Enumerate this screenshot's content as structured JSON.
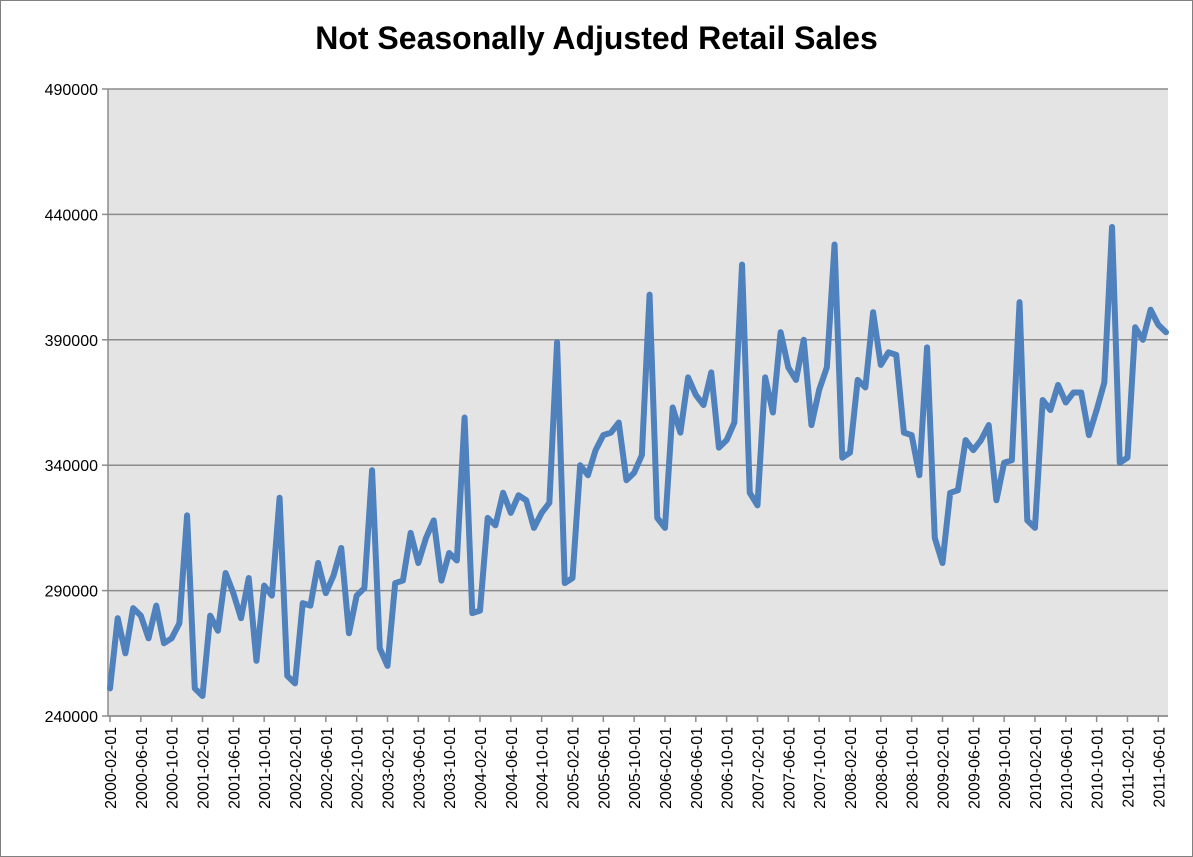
{
  "chart_data": {
    "type": "line",
    "title": "Not Seasonally Adjusted Retail Sales",
    "xlabel": "",
    "ylabel": "",
    "ylim": [
      240000,
      490000
    ],
    "yticks": [
      "240000",
      "290000",
      "340000",
      "390000",
      "440000",
      "490000"
    ],
    "grid": true,
    "legend": "none",
    "x_tick_labels": [
      "2000-02-01",
      "2000-06-01",
      "2000-10-01",
      "2001-02-01",
      "2001-06-01",
      "2001-10-01",
      "2002-02-01",
      "2002-06-01",
      "2002-10-01",
      "2003-02-01",
      "2003-06-01",
      "2003-10-01",
      "2004-02-01",
      "2004-06-01",
      "2004-10-01",
      "2005-02-01",
      "2005-06-01",
      "2005-10-01",
      "2006-02-01",
      "2006-06-01",
      "2006-10-01",
      "2007-02-01",
      "2007-06-01",
      "2007-10-01",
      "2008-02-01",
      "2008-06-01",
      "2008-10-01",
      "2009-02-01",
      "2009-06-01",
      "2009-10-01",
      "2010-02-01",
      "2010-06-01",
      "2010-10-01",
      "2011-02-01",
      "2011-06-01"
    ],
    "series": [
      {
        "color": "#4f81bd",
        "x": [
          "2000-02-01",
          "2000-03-01",
          "2000-04-01",
          "2000-05-01",
          "2000-06-01",
          "2000-07-01",
          "2000-08-01",
          "2000-09-01",
          "2000-10-01",
          "2000-11-01",
          "2000-12-01",
          "2001-01-01",
          "2001-02-01",
          "2001-03-01",
          "2001-04-01",
          "2001-05-01",
          "2001-06-01",
          "2001-07-01",
          "2001-08-01",
          "2001-09-01",
          "2001-10-01",
          "2001-11-01",
          "2001-12-01",
          "2002-01-01",
          "2002-02-01",
          "2002-03-01",
          "2002-04-01",
          "2002-05-01",
          "2002-06-01",
          "2002-07-01",
          "2002-08-01",
          "2002-09-01",
          "2002-10-01",
          "2002-11-01",
          "2002-12-01",
          "2003-01-01",
          "2003-02-01",
          "2003-03-01",
          "2003-04-01",
          "2003-05-01",
          "2003-06-01",
          "2003-07-01",
          "2003-08-01",
          "2003-09-01",
          "2003-10-01",
          "2003-11-01",
          "2003-12-01",
          "2004-01-01",
          "2004-02-01",
          "2004-03-01",
          "2004-04-01",
          "2004-05-01",
          "2004-06-01",
          "2004-07-01",
          "2004-08-01",
          "2004-09-01",
          "2004-10-01",
          "2004-11-01",
          "2004-12-01",
          "2005-01-01",
          "2005-02-01",
          "2005-03-01",
          "2005-04-01",
          "2005-05-01",
          "2005-06-01",
          "2005-07-01",
          "2005-08-01",
          "2005-09-01",
          "2005-10-01",
          "2005-11-01",
          "2005-12-01",
          "2006-01-01",
          "2006-02-01",
          "2006-03-01",
          "2006-04-01",
          "2006-05-01",
          "2006-06-01",
          "2006-07-01",
          "2006-08-01",
          "2006-09-01",
          "2006-10-01",
          "2006-11-01",
          "2006-12-01",
          "2007-01-01",
          "2007-02-01",
          "2007-03-01",
          "2007-04-01",
          "2007-05-01",
          "2007-06-01",
          "2007-07-01",
          "2007-08-01",
          "2007-09-01",
          "2007-10-01",
          "2007-11-01",
          "2007-12-01",
          "2008-01-01",
          "2008-02-01",
          "2008-03-01",
          "2008-04-01",
          "2008-05-01",
          "2008-06-01",
          "2008-07-01",
          "2008-08-01",
          "2008-09-01",
          "2008-10-01",
          "2008-11-01",
          "2008-12-01",
          "2009-01-01",
          "2009-02-01",
          "2009-03-01",
          "2009-04-01",
          "2009-05-01",
          "2009-06-01",
          "2009-07-01",
          "2009-08-01",
          "2009-09-01",
          "2009-10-01",
          "2009-11-01",
          "2009-12-01",
          "2010-01-01",
          "2010-02-01",
          "2010-03-01",
          "2010-04-01",
          "2010-05-01",
          "2010-06-01",
          "2010-07-01",
          "2010-08-01",
          "2010-09-01",
          "2010-10-01",
          "2010-11-01",
          "2010-12-01",
          "2011-01-01",
          "2011-02-01",
          "2011-03-01",
          "2011-04-01",
          "2011-05-01",
          "2011-06-01",
          "2011-07-01"
        ],
        "values": [
          251000,
          279000,
          265000,
          283000,
          280000,
          271000,
          284000,
          269000,
          271000,
          277000,
          320000,
          251000,
          248000,
          280000,
          274000,
          297000,
          289000,
          279000,
          295000,
          262000,
          292000,
          288000,
          327000,
          256000,
          253000,
          285000,
          284000,
          301000,
          289000,
          296000,
          307000,
          273000,
          288000,
          291000,
          338000,
          267000,
          260000,
          293000,
          294000,
          313000,
          301000,
          311000,
          318000,
          294000,
          305000,
          302000,
          359000,
          281000,
          282000,
          319000,
          316000,
          329000,
          321000,
          328000,
          326000,
          315000,
          321000,
          325000,
          389000,
          293000,
          295000,
          340000,
          336000,
          346000,
          352000,
          353000,
          357000,
          334000,
          337000,
          344000,
          408000,
          319000,
          315000,
          363000,
          353000,
          375000,
          368000,
          364000,
          377000,
          347000,
          350000,
          357000,
          420000,
          329000,
          324000,
          375000,
          361000,
          393000,
          379000,
          374000,
          390000,
          356000,
          370000,
          379000,
          428000,
          343000,
          345000,
          374000,
          371000,
          401000,
          380000,
          385000,
          384000,
          353000,
          352000,
          336000,
          387000,
          311000,
          301000,
          329000,
          330000,
          350000,
          346000,
          350000,
          356000,
          326000,
          341000,
          342000,
          405000,
          318000,
          315000,
          366000,
          362000,
          372000,
          365000,
          369000,
          369000,
          352000,
          362000,
          373000,
          435000,
          341000,
          343000,
          395000,
          390000,
          402000,
          396000,
          393000
        ]
      }
    ]
  }
}
